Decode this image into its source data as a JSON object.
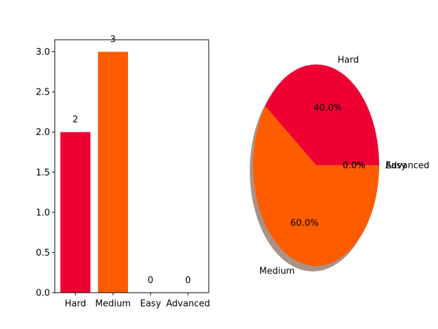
{
  "colors": {
    "hard": "#ef0033",
    "medium": "#ff5c00",
    "shadow": "#a0877a",
    "axis": "#000000"
  },
  "chart_data": [
    {
      "type": "bar",
      "title": "",
      "xlabel": "",
      "ylabel": "",
      "categories": [
        "Hard",
        "Medium",
        "Easy",
        "Advanced"
      ],
      "values": [
        2,
        3,
        0,
        0
      ],
      "data_labels": [
        "2",
        "3",
        "0",
        "0"
      ],
      "ylim": [
        0,
        3.15
      ],
      "yticks": [
        0.0,
        0.5,
        1.0,
        1.5,
        2.0,
        2.5,
        3.0
      ],
      "ytick_labels": [
        "0.0",
        "0.5",
        "1.0",
        "1.5",
        "2.0",
        "2.5",
        "3.0"
      ],
      "bar_colors": [
        "#ef0033",
        "#ff5c00",
        "#ff5c00",
        "#ff5c00"
      ],
      "grid": false
    },
    {
      "type": "pie",
      "title": "",
      "labels": [
        "Hard",
        "Medium",
        "Easy",
        "Advanced"
      ],
      "values": [
        2,
        3,
        0,
        0
      ],
      "percent_labels": [
        "40.0%",
        "60.0%",
        "0.0%",
        "0.0%"
      ],
      "colors": [
        "#ef0033",
        "#ff5c00",
        "#ff5c00",
        "#ff5c00"
      ],
      "shadow": true,
      "start_angle_deg": 0
    }
  ]
}
